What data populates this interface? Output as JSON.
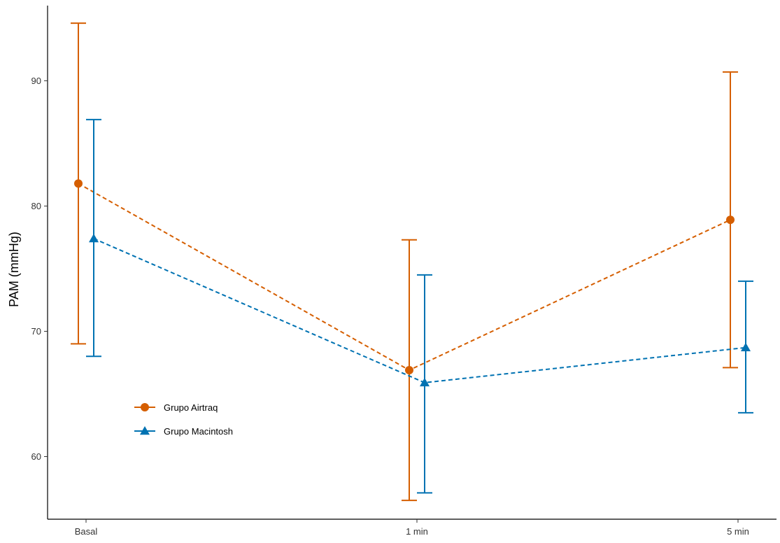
{
  "chart_data": {
    "type": "line",
    "title": "",
    "xlabel": "",
    "ylabel": "PAM (mmHg)",
    "categories": [
      "Basal",
      "1 min",
      "5 min"
    ],
    "ylim": [
      55,
      96
    ],
    "yticks": [
      60,
      70,
      80,
      90
    ],
    "grid": false,
    "legend_position": "bottom-left",
    "line_style": "dashed",
    "error_bars": true,
    "series": [
      {
        "name": "Grupo Airtraq",
        "color": "#D55E00",
        "marker": "circle",
        "values": [
          81.8,
          66.9,
          78.9
        ],
        "lower": [
          69.0,
          56.5,
          67.1
        ],
        "upper": [
          94.6,
          77.3,
          90.7
        ]
      },
      {
        "name": "Grupo Macintosh",
        "color": "#0072B2",
        "marker": "triangle",
        "values": [
          77.4,
          65.9,
          68.7
        ],
        "lower": [
          68.0,
          57.1,
          63.5
        ],
        "upper": [
          86.9,
          74.5,
          74.0
        ]
      }
    ]
  }
}
